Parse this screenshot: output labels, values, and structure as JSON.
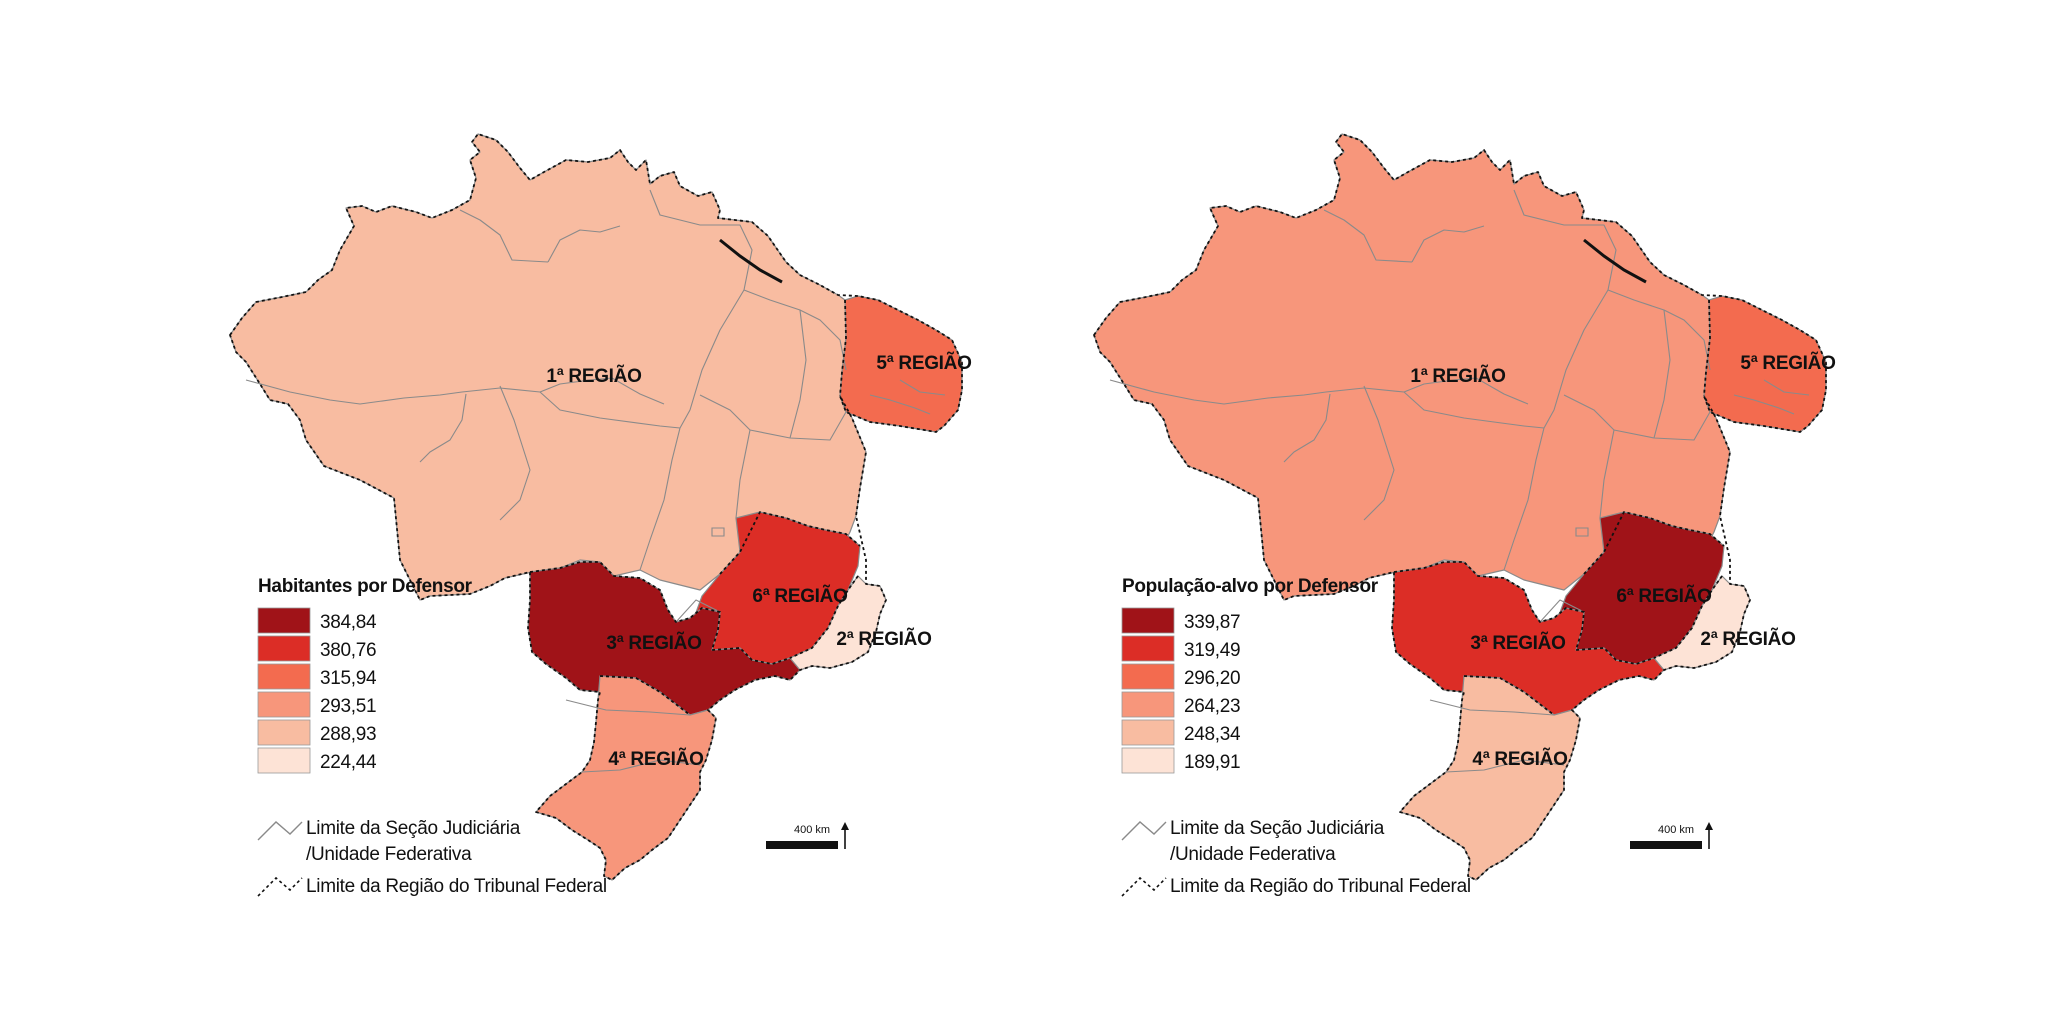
{
  "colors": {
    "state_border": "#8a8a8a",
    "region_border": "#111111",
    "label_text": "#111111"
  },
  "legend_lines": {
    "state_limit_line1": "Limite da Seção Judiciária",
    "state_limit_line2": "/Unidade Federativa",
    "region_limit": "Limite da Região do Tribunal Federal"
  },
  "scale_bar": {
    "label": "400 km"
  },
  "maps": [
    {
      "id": "left",
      "legend_title": "Habitantes por Defensor",
      "classes": [
        {
          "value": "384,84",
          "color": "#a01318"
        },
        {
          "value": "380,76",
          "color": "#dc2d26"
        },
        {
          "value": "315,94",
          "color": "#f36b4f"
        },
        {
          "value": "293,51",
          "color": "#f7967b"
        },
        {
          "value": "288,93",
          "color": "#f8bca1"
        },
        {
          "value": "224,44",
          "color": "#fde3d6"
        }
      ],
      "regions": [
        {
          "id": "r1",
          "label": "1ª REGIÃO",
          "class_value": "288,93",
          "color": "#f8bca1"
        },
        {
          "id": "r2",
          "label": "2ª REGIÃO",
          "class_value": "224,44",
          "color": "#fde3d6"
        },
        {
          "id": "r3",
          "label": "3ª REGIÃO",
          "class_value": "384,84",
          "color": "#a01318"
        },
        {
          "id": "r4",
          "label": "4ª REGIÃO",
          "class_value": "293,51",
          "color": "#f7967b"
        },
        {
          "id": "r5",
          "label": "5ª REGIÃO",
          "class_value": "315,94",
          "color": "#f36b4f"
        },
        {
          "id": "r6",
          "label": "6ª REGIÃO",
          "class_value": "380,76",
          "color": "#dc2d26"
        }
      ]
    },
    {
      "id": "right",
      "legend_title": "População-alvo por Defensor",
      "classes": [
        {
          "value": "339,87",
          "color": "#a01318"
        },
        {
          "value": "319,49",
          "color": "#dc2d26"
        },
        {
          "value": "296,20",
          "color": "#f36b4f"
        },
        {
          "value": "264,23",
          "color": "#f7967b"
        },
        {
          "value": "248,34",
          "color": "#f8bca1"
        },
        {
          "value": "189,91",
          "color": "#fde3d6"
        }
      ],
      "regions": [
        {
          "id": "r1",
          "label": "1ª REGIÃO",
          "class_value": "264,23",
          "color": "#f7967b"
        },
        {
          "id": "r2",
          "label": "2ª REGIÃO",
          "class_value": "189,91",
          "color": "#fde3d6"
        },
        {
          "id": "r3",
          "label": "3ª REGIÃO",
          "class_value": "319,49",
          "color": "#dc2d26"
        },
        {
          "id": "r4",
          "label": "4ª REGIÃO",
          "class_value": "248,34",
          "color": "#f8bca1"
        },
        {
          "id": "r5",
          "label": "5ª REGIÃO",
          "class_value": "296,20",
          "color": "#f36b4f"
        },
        {
          "id": "r6",
          "label": "6ª REGIÃO",
          "class_value": "339,87",
          "color": "#a01318"
        }
      ]
    }
  ]
}
